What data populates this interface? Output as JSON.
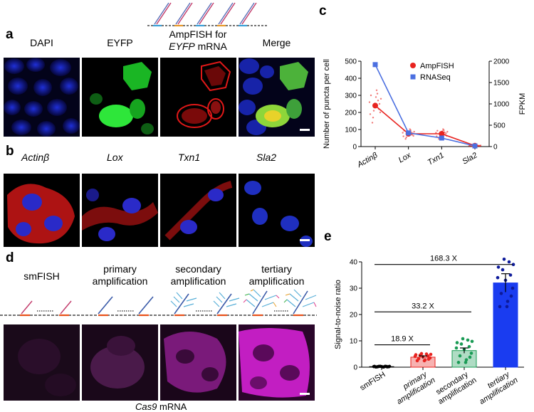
{
  "figure": {
    "panel_a": {
      "label": "a",
      "columns": [
        "DAPI",
        "EYFP",
        "AmpFISH for",
        "EYFP",
        "mRNA",
        "Merge"
      ]
    },
    "panel_b": {
      "label": "b",
      "genes": [
        "Actinβ",
        "Lox",
        "Txn1",
        "Sla2"
      ]
    },
    "panel_c": {
      "label": "c"
    },
    "panel_d": {
      "label": "d",
      "stages": [
        "smFISH",
        "primary",
        "amplification",
        "secondary",
        "amplification",
        "tertiary",
        "amplification"
      ],
      "caption_gene": "Cas9",
      "caption_suffix": "mRNA"
    },
    "panel_e": {
      "label": "e"
    }
  },
  "chart_data": [
    {
      "type": "line",
      "title": "",
      "categories": [
        "Actinβ",
        "Lox",
        "Txn1",
        "Sla2"
      ],
      "ylabel_left": "Number of puncta per cell",
      "ylabel_right": "FPKM",
      "ylim_left": [
        0,
        500
      ],
      "ylim_right": [
        0,
        2000
      ],
      "yticks_left": [
        "0",
        "100",
        "200",
        "300",
        "400",
        "500"
      ],
      "yticks_right": [
        "0",
        "500",
        "1000",
        "1500",
        "2000"
      ],
      "legend_position": "top-right",
      "series": [
        {
          "name": "AmpFISH",
          "axis": "left",
          "color": "#e8231f",
          "values": [
            240,
            75,
            75,
            5
          ]
        },
        {
          "name": "RNASeq",
          "axis": "right",
          "color": "#4b6fe0",
          "values": [
            1920,
            320,
            200,
            15
          ]
        }
      ]
    },
    {
      "type": "bar",
      "title": "",
      "categories": [
        "smFISH",
        "primary amplification",
        "secondary amplification",
        "tertiary amplification"
      ],
      "ylabel": "Signal-to-noise ratio",
      "ylim": [
        0,
        40
      ],
      "yticks": [
        "0",
        "10",
        "20",
        "30",
        "40"
      ],
      "values": [
        0.2,
        3.8,
        6.3,
        32
      ],
      "errors": [
        0.1,
        0.5,
        1.0,
        3.5
      ],
      "colors": [
        "#000000",
        "#e8231f",
        "#1a9b55",
        "#1a3cf0"
      ],
      "comparisons": [
        "18.9 X",
        "33.2 X",
        "168.3 X"
      ]
    }
  ]
}
